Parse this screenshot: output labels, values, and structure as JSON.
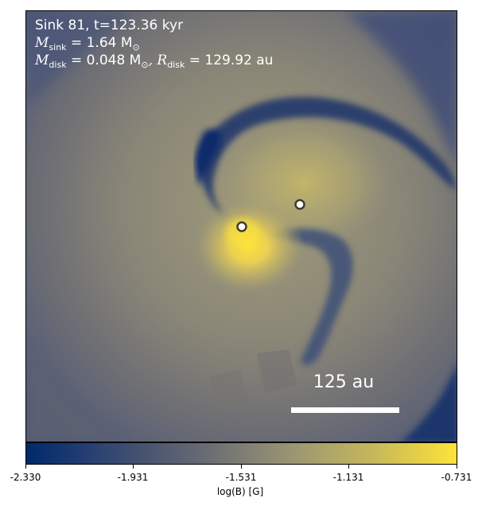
{
  "info": {
    "line1": "Sink 81, t=123.36 kyr",
    "sink_symbol": "M",
    "sink_sub": "sink",
    "sink_value": " = 1.64 M",
    "sink_sun": "⊙",
    "disk_symbol": "M",
    "disk_sub": "disk",
    "disk_value": " = 0.048 M",
    "disk_sun": "⊙",
    "radius_symbol": ", R",
    "radius_sub": "disk",
    "radius_value": " = 129.92 au"
  },
  "scale_bar": {
    "label": "125 au"
  },
  "colorbar": {
    "label": "log(B) [G]",
    "min": -2.33,
    "max": -0.731,
    "ticks": [
      "-2.330",
      "-1.931",
      "-1.531",
      "-1.131",
      "-0.731"
    ],
    "colormap": "cividis"
  },
  "colors": {
    "dark": "#002a6a",
    "mid": "#838174",
    "bright": "#fde338",
    "marker_ring": "#3c3c32"
  }
}
